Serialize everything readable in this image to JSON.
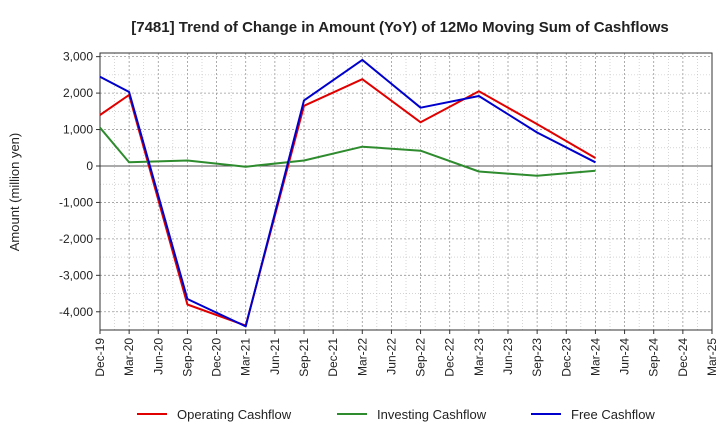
{
  "chart_data": {
    "type": "line",
    "title": "[7481]  Trend of Change in Amount (YoY) of 12Mo Moving Sum of Cashflows",
    "xlabel": "",
    "ylabel": "Amount (million yen)",
    "ylim": [
      -4500,
      3100
    ],
    "yticks": [
      3000,
      2000,
      1000,
      0,
      -1000,
      -2000,
      -3000,
      -4000
    ],
    "ytick_labels": [
      "3,000",
      "2,000",
      "1,000",
      "0",
      "-1,000",
      "-2,000",
      "-3,000",
      "-4,000"
    ],
    "categories": [
      "Dec-19",
      "Mar-20",
      "Jun-20",
      "Sep-20",
      "Dec-20",
      "Mar-21",
      "Jun-21",
      "Sep-21",
      "Dec-21",
      "Mar-22",
      "Jun-22",
      "Sep-22",
      "Dec-22",
      "Mar-23",
      "Jun-23",
      "Sep-23",
      "Dec-23",
      "Mar-24",
      "Jun-24",
      "Sep-24",
      "Dec-24",
      "Mar-25"
    ],
    "grid": true,
    "legend_position": "bottom",
    "series": [
      {
        "name": "Operating Cashflow",
        "color": "#e00000",
        "values": [
          1400,
          1950,
          null,
          -3800,
          null,
          -4380,
          null,
          1650,
          null,
          2380,
          null,
          1200,
          null,
          2050,
          null,
          1150,
          null,
          220,
          null,
          null,
          null,
          null
        ]
      },
      {
        "name": "Investing Cashflow",
        "color": "#2e8b2e",
        "values": [
          1050,
          100,
          null,
          150,
          null,
          -20,
          null,
          150,
          null,
          530,
          null,
          420,
          null,
          -150,
          null,
          -270,
          null,
          -130,
          null,
          null,
          null,
          null
        ]
      },
      {
        "name": "Free Cashflow",
        "color": "#0000cc",
        "values": [
          2450,
          2030,
          null,
          -3650,
          null,
          -4400,
          null,
          1800,
          null,
          2910,
          null,
          1600,
          null,
          1920,
          null,
          920,
          null,
          100,
          null,
          null,
          null,
          null
        ]
      }
    ]
  }
}
